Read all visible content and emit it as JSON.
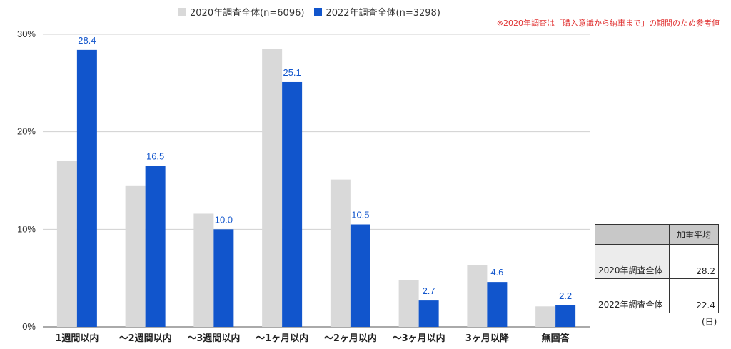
{
  "legend": {
    "items": [
      {
        "label": "2020年調査全体(n=6096)",
        "color": "#d9d9d9"
      },
      {
        "label": "2022年調査全体(n=3298)",
        "color": "#1155cc"
      }
    ]
  },
  "note": "※2020年調査は「購入意識から納車まで」の期間のため参考値",
  "chart_data": {
    "type": "bar",
    "categories": [
      "1週間以内",
      "〜2週間以内",
      "〜3週間以内",
      "〜1ヶ月以内",
      "〜2ヶ月以内",
      "〜3ヶ月以内",
      "3ヶ月以降",
      "無回答"
    ],
    "series": [
      {
        "name": "2020年調査全体(n=6096)",
        "color": "#d9d9d9",
        "values": [
          17.0,
          14.5,
          11.6,
          28.5,
          15.1,
          4.8,
          6.3,
          2.1
        ],
        "show_labels": false
      },
      {
        "name": "2022年調査全体(n=3298)",
        "color": "#1155cc",
        "values": [
          28.4,
          16.5,
          10.0,
          25.1,
          10.5,
          2.7,
          4.6,
          2.2
        ],
        "show_labels": true
      }
    ],
    "ylim": [
      0,
      30
    ],
    "yticks": [
      0,
      10,
      20,
      30
    ],
    "ytick_labels": [
      "0%",
      "10%",
      "20%",
      "30%"
    ],
    "data_labels": [
      "28.4",
      "16.5",
      "10.0",
      "25.1",
      "10.5",
      "2.7",
      "4.6",
      "2.2"
    ],
    "label_color": "#1155cc",
    "grid": true,
    "legend_position": "top"
  },
  "avg_table": {
    "header": "加重平均",
    "rows": [
      {
        "label": "2020年調査全体",
        "value": "28.2"
      },
      {
        "label": "2022年調査全体",
        "value": "22.4"
      }
    ],
    "unit": "(日)"
  }
}
